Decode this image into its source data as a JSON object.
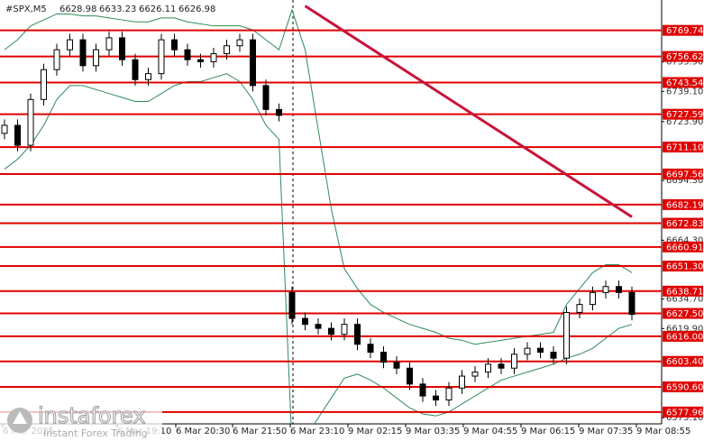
{
  "chart_data": {
    "type": "candlestick",
    "title": "#SPX,M5",
    "quote": [
      6628.98,
      6633.23,
      6626.11,
      6626.98
    ],
    "ylim": [
      6572,
      6785
    ],
    "yticks": [
      {
        "value": 6753.9,
        "label": "6753.90"
      },
      {
        "value": 6739.1,
        "label": "6739.10"
      },
      {
        "value": 6723.9,
        "label": "6723.90"
      },
      {
        "value": 6694.3,
        "label": "6694.30"
      },
      {
        "value": 6664.3,
        "label": "6664.30"
      },
      {
        "value": 6634.7,
        "label": "6634.70"
      },
      {
        "value": 6619.9,
        "label": "6619.90"
      },
      {
        "value": 6575.1,
        "label": "6575.10"
      }
    ],
    "xlabels": [
      "6 Mar 2025",
      "6 Mar 19:10",
      "6 Mar 20:30",
      "6 Mar 21:50",
      "6 Mar 23:10",
      "9 Mar 02:15",
      "9 Mar 03:35",
      "9 Mar 04:55",
      "9 Mar 06:15",
      "9 Mar 07:35",
      "9 Mar 08:55"
    ],
    "candles": {
      "color": "#000000",
      "open": [
        6718,
        6722,
        6712,
        6735,
        6750,
        6760,
        6765,
        6752,
        6760,
        6766,
        6755,
        6745,
        6748,
        6765,
        6760,
        6755,
        6754,
        6758,
        6762,
        6765,
        6742,
        6730,
        6638,
        6625,
        6622,
        6620,
        6617,
        6622,
        6612,
        6608,
        6603,
        6600,
        6592,
        6586,
        6584,
        6590,
        6596,
        6598,
        6602,
        6600,
        6607,
        6610,
        6608,
        6605,
        6628,
        6632,
        6638,
        6641,
        6638
      ],
      "high": [
        6725,
        6725,
        6738,
        6753,
        6763,
        6768,
        6768,
        6763,
        6769,
        6769,
        6758,
        6751,
        6768,
        6768,
        6763,
        6758,
        6761,
        6765,
        6768,
        6768,
        6745,
        6733,
        6641,
        6628,
        6625,
        6623,
        6625,
        6625,
        6615,
        6611,
        6606,
        6603,
        6595,
        6589,
        6593,
        6599,
        6601,
        6605,
        6605,
        6610,
        6613,
        6613,
        6611,
        6631,
        6635,
        6641,
        6644,
        6644,
        6641
      ],
      "low": [
        6715,
        6709,
        6709,
        6732,
        6747,
        6757,
        6749,
        6749,
        6757,
        6752,
        6742,
        6742,
        6745,
        6757,
        6752,
        6751,
        6751,
        6755,
        6759,
        6739,
        6727,
        6724,
        6622,
        6619,
        6617,
        6614,
        6614,
        6609,
        6605,
        6600,
        6597,
        6589,
        6583,
        6581,
        6581,
        6587,
        6593,
        6595,
        6597,
        6597,
        6604,
        6605,
        6602,
        6602,
        6625,
        6629,
        6635,
        6635,
        6624
      ],
      "close": [
        6722,
        6712,
        6735,
        6750,
        6760,
        6765,
        6752,
        6760,
        6766,
        6755,
        6745,
        6748,
        6765,
        6760,
        6755,
        6754,
        6758,
        6762,
        6765,
        6742,
        6730,
        6727,
        6625,
        6622,
        6620,
        6617,
        6622,
        6612,
        6608,
        6603,
        6600,
        6592,
        6586,
        6584,
        6590,
        6596,
        6598,
        6602,
        6600,
        6607,
        6610,
        6608,
        6605,
        6628,
        6632,
        6638,
        6641,
        6638,
        6627
      ]
    },
    "bands": {
      "color": "#2e8b57",
      "upper": [
        6760,
        6765,
        6772,
        6775,
        6778,
        6778,
        6777,
        6777,
        6776,
        6775,
        6774,
        6774,
        6776,
        6776,
        6774,
        6773,
        6772,
        6772,
        6772,
        6770,
        6765,
        6760,
        6780,
        6760,
        6720,
        6680,
        6650,
        6640,
        6632,
        6628,
        6625,
        6622,
        6620,
        6618,
        6615,
        6614,
        6612,
        6613,
        6614,
        6615,
        6616,
        6617,
        6618,
        6632,
        6640,
        6648,
        6652,
        6652,
        6648
      ],
      "lower": [
        6700,
        6705,
        6712,
        6722,
        6735,
        6742,
        6742,
        6740,
        6738,
        6736,
        6734,
        6734,
        6738,
        6742,
        6744,
        6744,
        6746,
        6748,
        6744,
        6735,
        6722,
        6715,
        6560,
        6565,
        6575,
        6585,
        6595,
        6597,
        6594,
        6590,
        6585,
        6580,
        6577,
        6576,
        6578,
        6582,
        6586,
        6590,
        6594,
        6596,
        6598,
        6600,
        6602,
        6605,
        6607,
        6610,
        6615,
        6620,
        6622
      ]
    },
    "trendline": {
      "x": [
        23,
        48
      ],
      "values": [
        6782,
        6676
      ],
      "color": "#c8143c"
    },
    "levels": {
      "color": "#e00000",
      "values": [
        6769.74,
        6756.62,
        6743.54,
        6727.59,
        {
          "value": 6711.1,
          "label": "6711.10"
        },
        6697.56,
        6682.19,
        6672.83,
        6660.91,
        {
          "value": 6651.3,
          "label": "6651.30"
        },
        6638.71,
        {
          "value": 6627.5,
          "label": "6627.50"
        },
        {
          "value": 6616,
          "label": "6616.00"
        },
        {
          "value": 6603.4,
          "label": "6603.40"
        },
        {
          "value": 6590.6,
          "label": "6590.60"
        },
        6577.96
      ]
    }
  },
  "branding": {
    "name": "instaforex",
    "tagline": "Instant Forex Trading"
  }
}
